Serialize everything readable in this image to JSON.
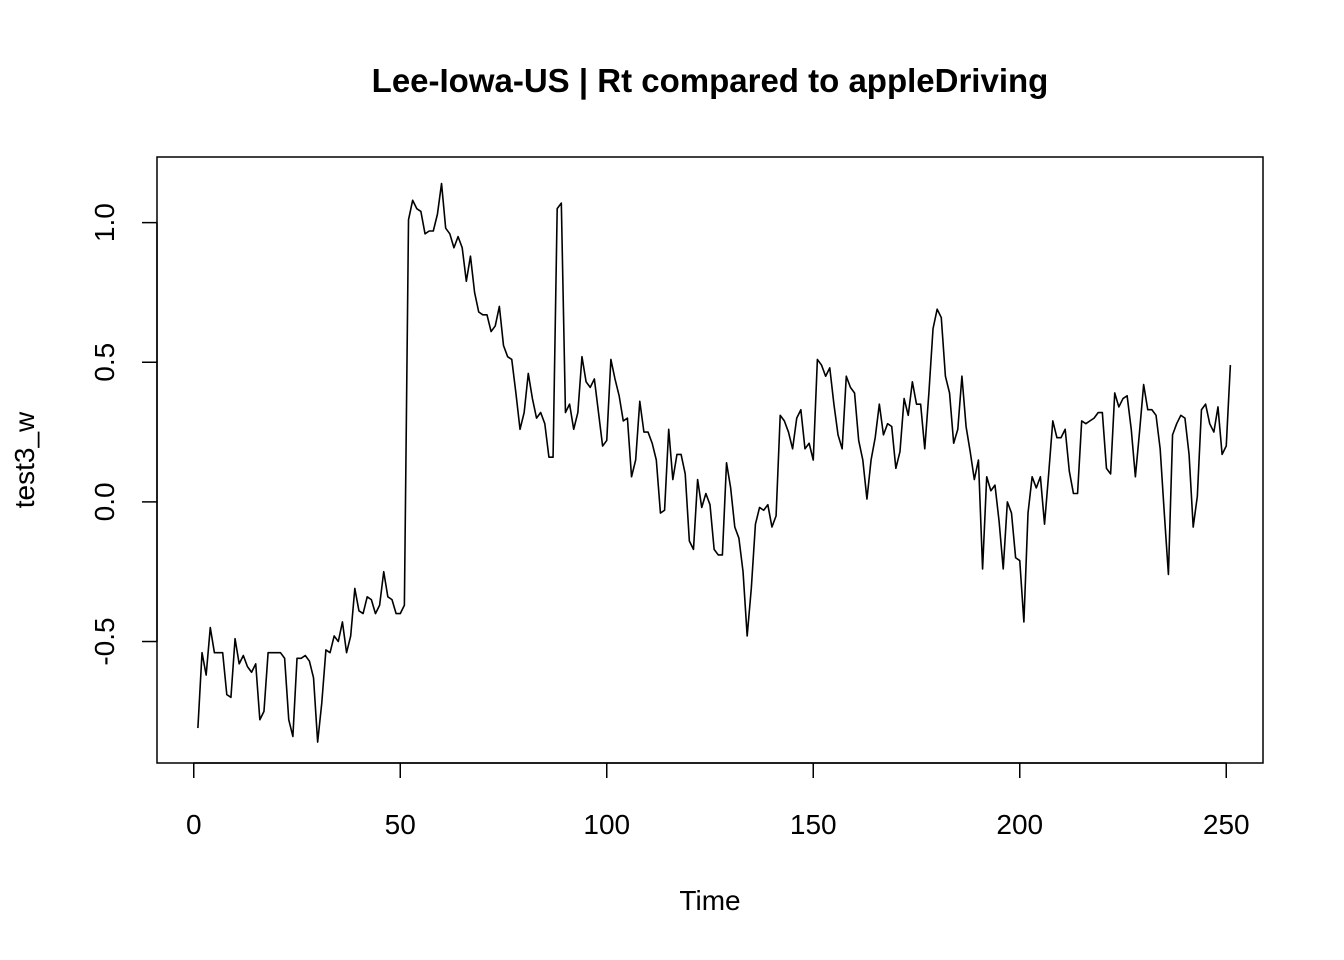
{
  "chart_data": {
    "type": "line",
    "title": "Lee-Iowa-US | Rt compared to appleDriving",
    "xlabel": "Time",
    "ylabel": "test3_w",
    "xlim": [
      -8.9,
      258.9
    ],
    "ylim": [
      -0.935,
      1.235
    ],
    "x_ticks": [
      0,
      50,
      100,
      150,
      200,
      250
    ],
    "x_tick_labels": [
      "0",
      "50",
      "100",
      "150",
      "200",
      "250"
    ],
    "y_ticks": [
      -0.5,
      0.0,
      0.5,
      1.0
    ],
    "y_tick_labels": [
      "-0.5",
      "0.0",
      "0.5",
      "1.0"
    ],
    "grid": false,
    "legend": "none",
    "line_color": "#000000",
    "x_start": 1,
    "series": [
      {
        "values": [
          -0.81,
          -0.54,
          -0.62,
          -0.45,
          -0.54,
          -0.54,
          -0.54,
          -0.69,
          -0.7,
          -0.49,
          -0.58,
          -0.55,
          -0.59,
          -0.61,
          -0.58,
          -0.78,
          -0.75,
          -0.54,
          -0.54,
          -0.54,
          -0.54,
          -0.56,
          -0.78,
          -0.84,
          -0.56,
          -0.56,
          -0.55,
          -0.57,
          -0.63,
          -0.86,
          -0.72,
          -0.53,
          -0.54,
          -0.48,
          -0.5,
          -0.43,
          -0.54,
          -0.48,
          -0.31,
          -0.39,
          -0.4,
          -0.34,
          -0.35,
          -0.4,
          -0.37,
          -0.25,
          -0.34,
          -0.35,
          -0.4,
          -0.4,
          -0.37,
          1.01,
          1.08,
          1.05,
          1.04,
          0.96,
          0.97,
          0.97,
          1.03,
          1.14,
          0.98,
          0.96,
          0.91,
          0.95,
          0.91,
          0.79,
          0.88,
          0.75,
          0.68,
          0.67,
          0.67,
          0.61,
          0.63,
          0.7,
          0.56,
          0.52,
          0.51,
          0.39,
          0.26,
          0.32,
          0.46,
          0.37,
          0.3,
          0.32,
          0.28,
          0.16,
          0.16,
          1.05,
          1.07,
          0.32,
          0.35,
          0.26,
          0.32,
          0.52,
          0.43,
          0.41,
          0.44,
          0.32,
          0.2,
          0.22,
          0.51,
          0.44,
          0.38,
          0.29,
          0.3,
          0.09,
          0.15,
          0.36,
          0.25,
          0.25,
          0.21,
          0.15,
          -0.04,
          -0.03,
          0.26,
          0.08,
          0.17,
          0.17,
          0.1,
          -0.14,
          -0.17,
          0.08,
          -0.02,
          0.03,
          -0.01,
          -0.17,
          -0.19,
          -0.19,
          0.14,
          0.05,
          -0.09,
          -0.13,
          -0.25,
          -0.48,
          -0.31,
          -0.08,
          -0.02,
          -0.03,
          -0.01,
          -0.09,
          -0.05,
          0.31,
          0.29,
          0.25,
          0.19,
          0.3,
          0.33,
          0.19,
          0.21,
          0.15,
          0.51,
          0.49,
          0.45,
          0.48,
          0.35,
          0.24,
          0.19,
          0.45,
          0.41,
          0.39,
          0.22,
          0.15,
          0.01,
          0.15,
          0.23,
          0.35,
          0.24,
          0.28,
          0.27,
          0.12,
          0.18,
          0.37,
          0.31,
          0.43,
          0.35,
          0.35,
          0.19,
          0.39,
          0.62,
          0.69,
          0.66,
          0.45,
          0.39,
          0.21,
          0.26,
          0.45,
          0.27,
          0.18,
          0.08,
          0.15,
          -0.24,
          0.09,
          0.04,
          0.06,
          -0.07,
          -0.24,
          0.0,
          -0.04,
          -0.2,
          -0.21,
          -0.43,
          -0.04,
          0.09,
          0.05,
          0.09,
          -0.08,
          0.1,
          0.29,
          0.23,
          0.23,
          0.26,
          0.11,
          0.03,
          0.03,
          0.29,
          0.28,
          0.29,
          0.3,
          0.32,
          0.32,
          0.12,
          0.1,
          0.39,
          0.34,
          0.37,
          0.38,
          0.26,
          0.09,
          0.25,
          0.42,
          0.33,
          0.33,
          0.31,
          0.19,
          -0.04,
          -0.26,
          0.24,
          0.28,
          0.31,
          0.3,
          0.17,
          -0.09,
          0.02,
          0.33,
          0.35,
          0.28,
          0.25,
          0.34,
          0.17,
          0.2,
          0.49
        ]
      }
    ]
  }
}
